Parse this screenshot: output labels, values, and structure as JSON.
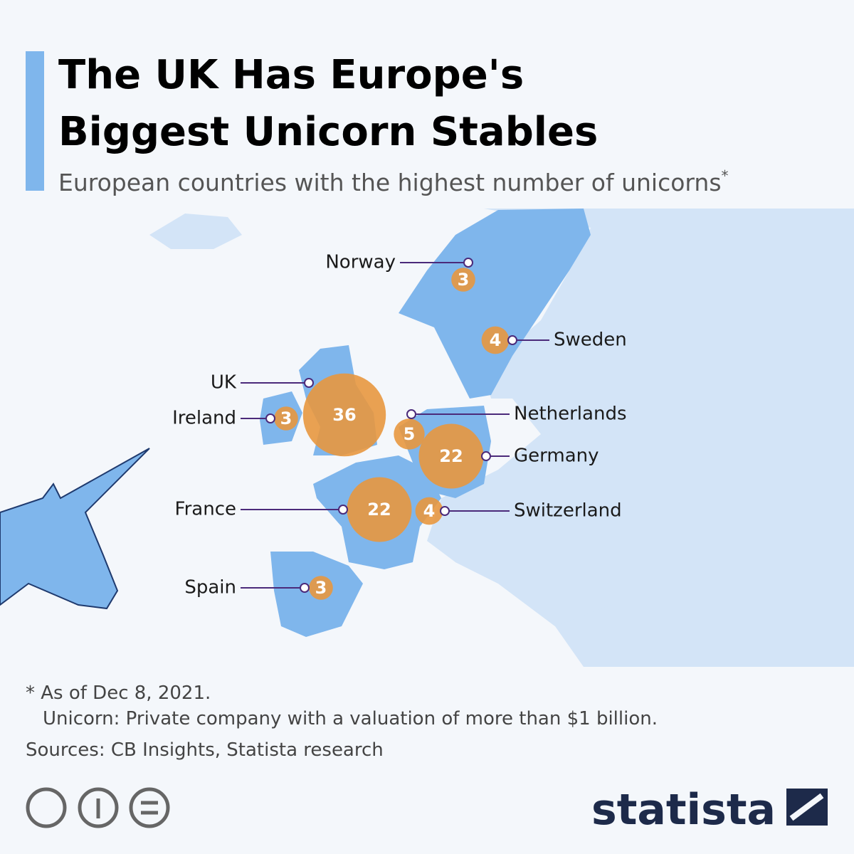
{
  "header": {
    "title_lines": [
      "The UK Has Europe's",
      "Biggest Unicorn Stables"
    ],
    "subtitle": "European countries with the highest number of unicorns",
    "subtitle_mark": "*"
  },
  "countries": [
    {
      "name": "Norway",
      "value": 3
    },
    {
      "name": "Sweden",
      "value": 4
    },
    {
      "name": "UK",
      "value": 36
    },
    {
      "name": "Ireland",
      "value": 3
    },
    {
      "name": "Netherlands",
      "value": 5
    },
    {
      "name": "Germany",
      "value": 22
    },
    {
      "name": "France",
      "value": 22
    },
    {
      "name": "Switzerland",
      "value": 4
    },
    {
      "name": "Spain",
      "value": 3
    }
  ],
  "notes": [
    "* As of Dec 8, 2021.",
    "Unicorn: Private company with a valuation of more than $1 billion."
  ],
  "source": "Sources: CB Insights, Statista research",
  "brand": "statista"
}
